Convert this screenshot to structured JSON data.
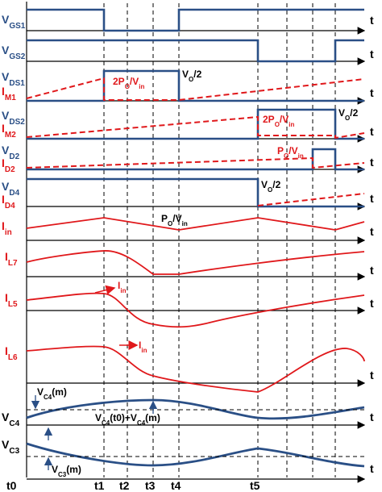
{
  "colors": {
    "blue": "#2a4f86",
    "red": "#e0181b",
    "black": "#000000",
    "axis": "#000000"
  },
  "panels": [
    {
      "id": "vgs1",
      "labels": [
        {
          "main": "V",
          "sub": "GS1",
          "color": "blue"
        }
      ],
      "axis_label": "t"
    },
    {
      "id": "vgs2",
      "labels": [
        {
          "main": "V",
          "sub": "GS2",
          "color": "blue"
        }
      ],
      "axis_label": "t"
    },
    {
      "id": "vds1",
      "labels": [
        {
          "main": "V",
          "sub": "DS1",
          "color": "blue"
        },
        {
          "main": "I",
          "sub": "M1",
          "color": "red"
        }
      ],
      "axis_label": "t",
      "annotations": [
        {
          "main": "2P",
          "sub": "O",
          "rest": "/V",
          "sub2": "in",
          "color": "red"
        },
        {
          "main": "V",
          "sub": "O",
          "rest": "/2",
          "color": "black"
        }
      ]
    },
    {
      "id": "vds2",
      "labels": [
        {
          "main": "V",
          "sub": "DS2",
          "color": "blue"
        },
        {
          "main": "I",
          "sub": "M2",
          "color": "red"
        }
      ],
      "axis_label": "t",
      "annotations": [
        {
          "main": "2P",
          "sub": "O",
          "rest": "/V",
          "sub2": "in",
          "color": "red"
        },
        {
          "main": "V",
          "sub": "O",
          "rest": "/2",
          "color": "black"
        }
      ]
    },
    {
      "id": "vd2",
      "labels": [
        {
          "main": "V",
          "sub": "D2",
          "color": "blue"
        },
        {
          "main": "I",
          "sub": "D2",
          "color": "red"
        }
      ],
      "axis_label": "t",
      "annotations": [
        {
          "main": "P",
          "sub": "O",
          "rest": "/V",
          "sub2": "in",
          "color": "red"
        }
      ]
    },
    {
      "id": "vd4",
      "labels": [
        {
          "main": "V",
          "sub": "D4",
          "color": "blue"
        },
        {
          "main": "I",
          "sub": "D4",
          "color": "red"
        }
      ],
      "axis_label": "t",
      "annotations": [
        {
          "main": "V",
          "sub": "O",
          "rest": "/2",
          "color": "black"
        }
      ]
    },
    {
      "id": "iin",
      "labels": [
        {
          "main": "I",
          "sub": "in",
          "color": "red"
        }
      ],
      "axis_label": "t",
      "annotations": [
        {
          "main": "P",
          "sub": "O",
          "rest": "/V",
          "sub2": "in",
          "color": "black"
        }
      ]
    },
    {
      "id": "il7",
      "labels": [
        {
          "main": "I",
          "sub": "L7",
          "color": "red"
        }
      ],
      "axis_label": "t"
    },
    {
      "id": "il5",
      "labels": [
        {
          "main": "I",
          "sub": "L5",
          "color": "red"
        }
      ],
      "axis_label": "t",
      "annotations": [
        {
          "main": "I",
          "sub": "in",
          "color": "red"
        }
      ]
    },
    {
      "id": "il6",
      "labels": [
        {
          "main": "I",
          "sub": "L6",
          "color": "red"
        }
      ],
      "axis_label": "t",
      "annotations": [
        {
          "main": "I",
          "sub": "in",
          "color": "red"
        }
      ]
    },
    {
      "id": "vc4",
      "labels": [
        {
          "main": "V",
          "sub": "C4",
          "color": "black"
        }
      ],
      "axis_label": "t",
      "annotations": [
        {
          "main": "V",
          "sub": "C4",
          "rest": "(m)",
          "color": "black"
        },
        {
          "main": "V",
          "sub": "C4",
          "rest": "(t0)+V",
          "sub2": "C4",
          "rest2": "(m)",
          "color": "black"
        }
      ]
    },
    {
      "id": "vc3",
      "labels": [
        {
          "main": "V",
          "sub": "C3",
          "color": "black"
        }
      ],
      "axis_label": "t",
      "annotations": [
        {
          "main": "V",
          "sub": "C3",
          "rest": "(m)",
          "color": "black"
        }
      ]
    }
  ],
  "time_labels": [
    "t0",
    "t1",
    "t2",
    "t3",
    "t4",
    "t5"
  ]
}
